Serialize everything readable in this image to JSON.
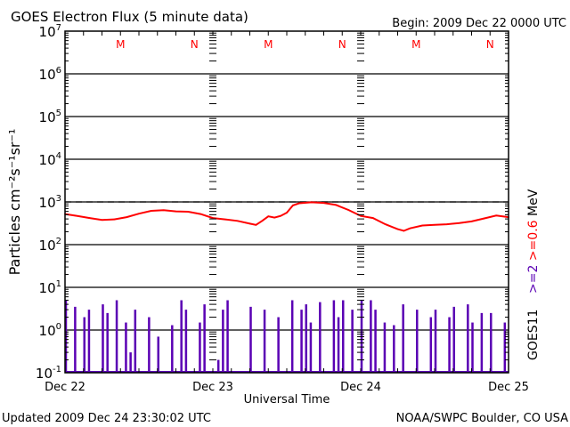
{
  "chart_data": {
    "type": "line",
    "title": "GOES Electron Flux (5 minute data)",
    "begin_label": "Begin: 2009 Dec 22 0000 UTC",
    "xlabel": "Universal Time",
    "ylabel": "Particles cm⁻²s⁻¹sr⁻¹",
    "yscale": "log",
    "ylim": [
      0.1,
      10000000
    ],
    "y_ticks": [
      {
        "base": "10",
        "exp": "7",
        "value": 10000000
      },
      {
        "base": "10",
        "exp": "6",
        "value": 1000000
      },
      {
        "base": "10",
        "exp": "5",
        "value": 100000
      },
      {
        "base": "10",
        "exp": "4",
        "value": 10000
      },
      {
        "base": "10",
        "exp": "3",
        "value": 1000
      },
      {
        "base": "10",
        "exp": "2",
        "value": 100
      },
      {
        "base": "10",
        "exp": "1",
        "value": 10
      },
      {
        "base": "10",
        "exp": "0",
        "value": 1
      },
      {
        "base": "10",
        "exp": "-1",
        "value": 0.1
      }
    ],
    "x_range_hours": [
      0,
      72
    ],
    "x_ticks": [
      {
        "label": "Dec 22",
        "hour": 0
      },
      {
        "label": "Dec 23",
        "hour": 24
      },
      {
        "label": "Dec 24",
        "hour": 48
      },
      {
        "label": "Dec 25",
        "hour": 72
      }
    ],
    "threshold": 1000,
    "mn_markers": [
      {
        "label": "M",
        "hour": 9
      },
      {
        "label": "N",
        "hour": 21
      },
      {
        "label": "M",
        "hour": 33
      },
      {
        "label": "N",
        "hour": 45
      },
      {
        "label": "M",
        "hour": 57
      },
      {
        "label": "N",
        "hour": 69
      }
    ],
    "series": [
      {
        "name": ">=0.6 MeV",
        "color": "#ff0000",
        "hours": [
          0,
          2,
          4,
          6,
          8,
          10,
          12,
          14,
          16,
          18,
          20,
          22,
          24,
          26,
          28,
          30,
          31,
          32,
          33,
          34,
          35,
          36,
          37,
          38,
          40,
          42,
          44,
          46,
          48,
          50,
          52,
          54,
          55,
          56,
          58,
          60,
          62,
          64,
          66,
          68,
          70,
          72
        ],
        "values": [
          520,
          470,
          420,
          380,
          390,
          440,
          530,
          620,
          640,
          600,
          590,
          520,
          420,
          390,
          360,
          310,
          290,
          360,
          460,
          430,
          470,
          560,
          830,
          930,
          980,
          950,
          850,
          650,
          470,
          420,
          300,
          230,
          210,
          240,
          280,
          290,
          300,
          320,
          350,
          410,
          480,
          440
        ]
      },
      {
        "name": ">=2 MeV",
        "color": "#5a00b4",
        "hours_step": 0.75,
        "values": [
          5,
          0.1,
          3.5,
          0.1,
          2,
          3,
          0.1,
          0.1,
          4,
          2.5,
          0.1,
          5,
          0.1,
          1.5,
          0.3,
          3,
          0.1,
          0.1,
          2,
          0.1,
          0.7,
          0.1,
          0.1,
          1.3,
          0.1,
          5,
          3,
          0.1,
          0.1,
          1.5,
          4,
          0.1,
          0.1,
          0.2,
          3,
          5,
          0.1,
          0.1,
          0.1,
          0.1,
          3.5,
          0.1,
          0.1,
          3,
          0.1,
          0.1,
          2,
          0.1,
          0.1,
          5,
          0.1,
          3,
          4,
          1.5,
          0.1,
          4.5,
          0.1,
          0.1,
          5,
          2,
          5,
          0.1,
          3,
          0.1,
          5,
          0.1,
          5,
          3,
          0.1,
          1.5,
          0.1,
          1.3,
          0.1,
          4,
          0.1,
          0.1,
          3,
          0.1,
          0.1,
          2,
          3,
          0.1,
          0.1,
          2,
          3.5,
          0.1,
          0.1,
          4,
          1.5,
          0.1,
          2.5,
          0.1,
          2.5,
          0.1,
          0.1,
          1.5
        ]
      }
    ],
    "right_labels": {
      "purple": ">=2",
      "red": ">=0.6",
      "unit": "MeV",
      "satellite": "GOES11"
    }
  },
  "footer": {
    "updated": "Updated 2009 Dec 24 23:30:02 UTC",
    "source": "NOAA/SWPC Boulder, CO USA"
  }
}
